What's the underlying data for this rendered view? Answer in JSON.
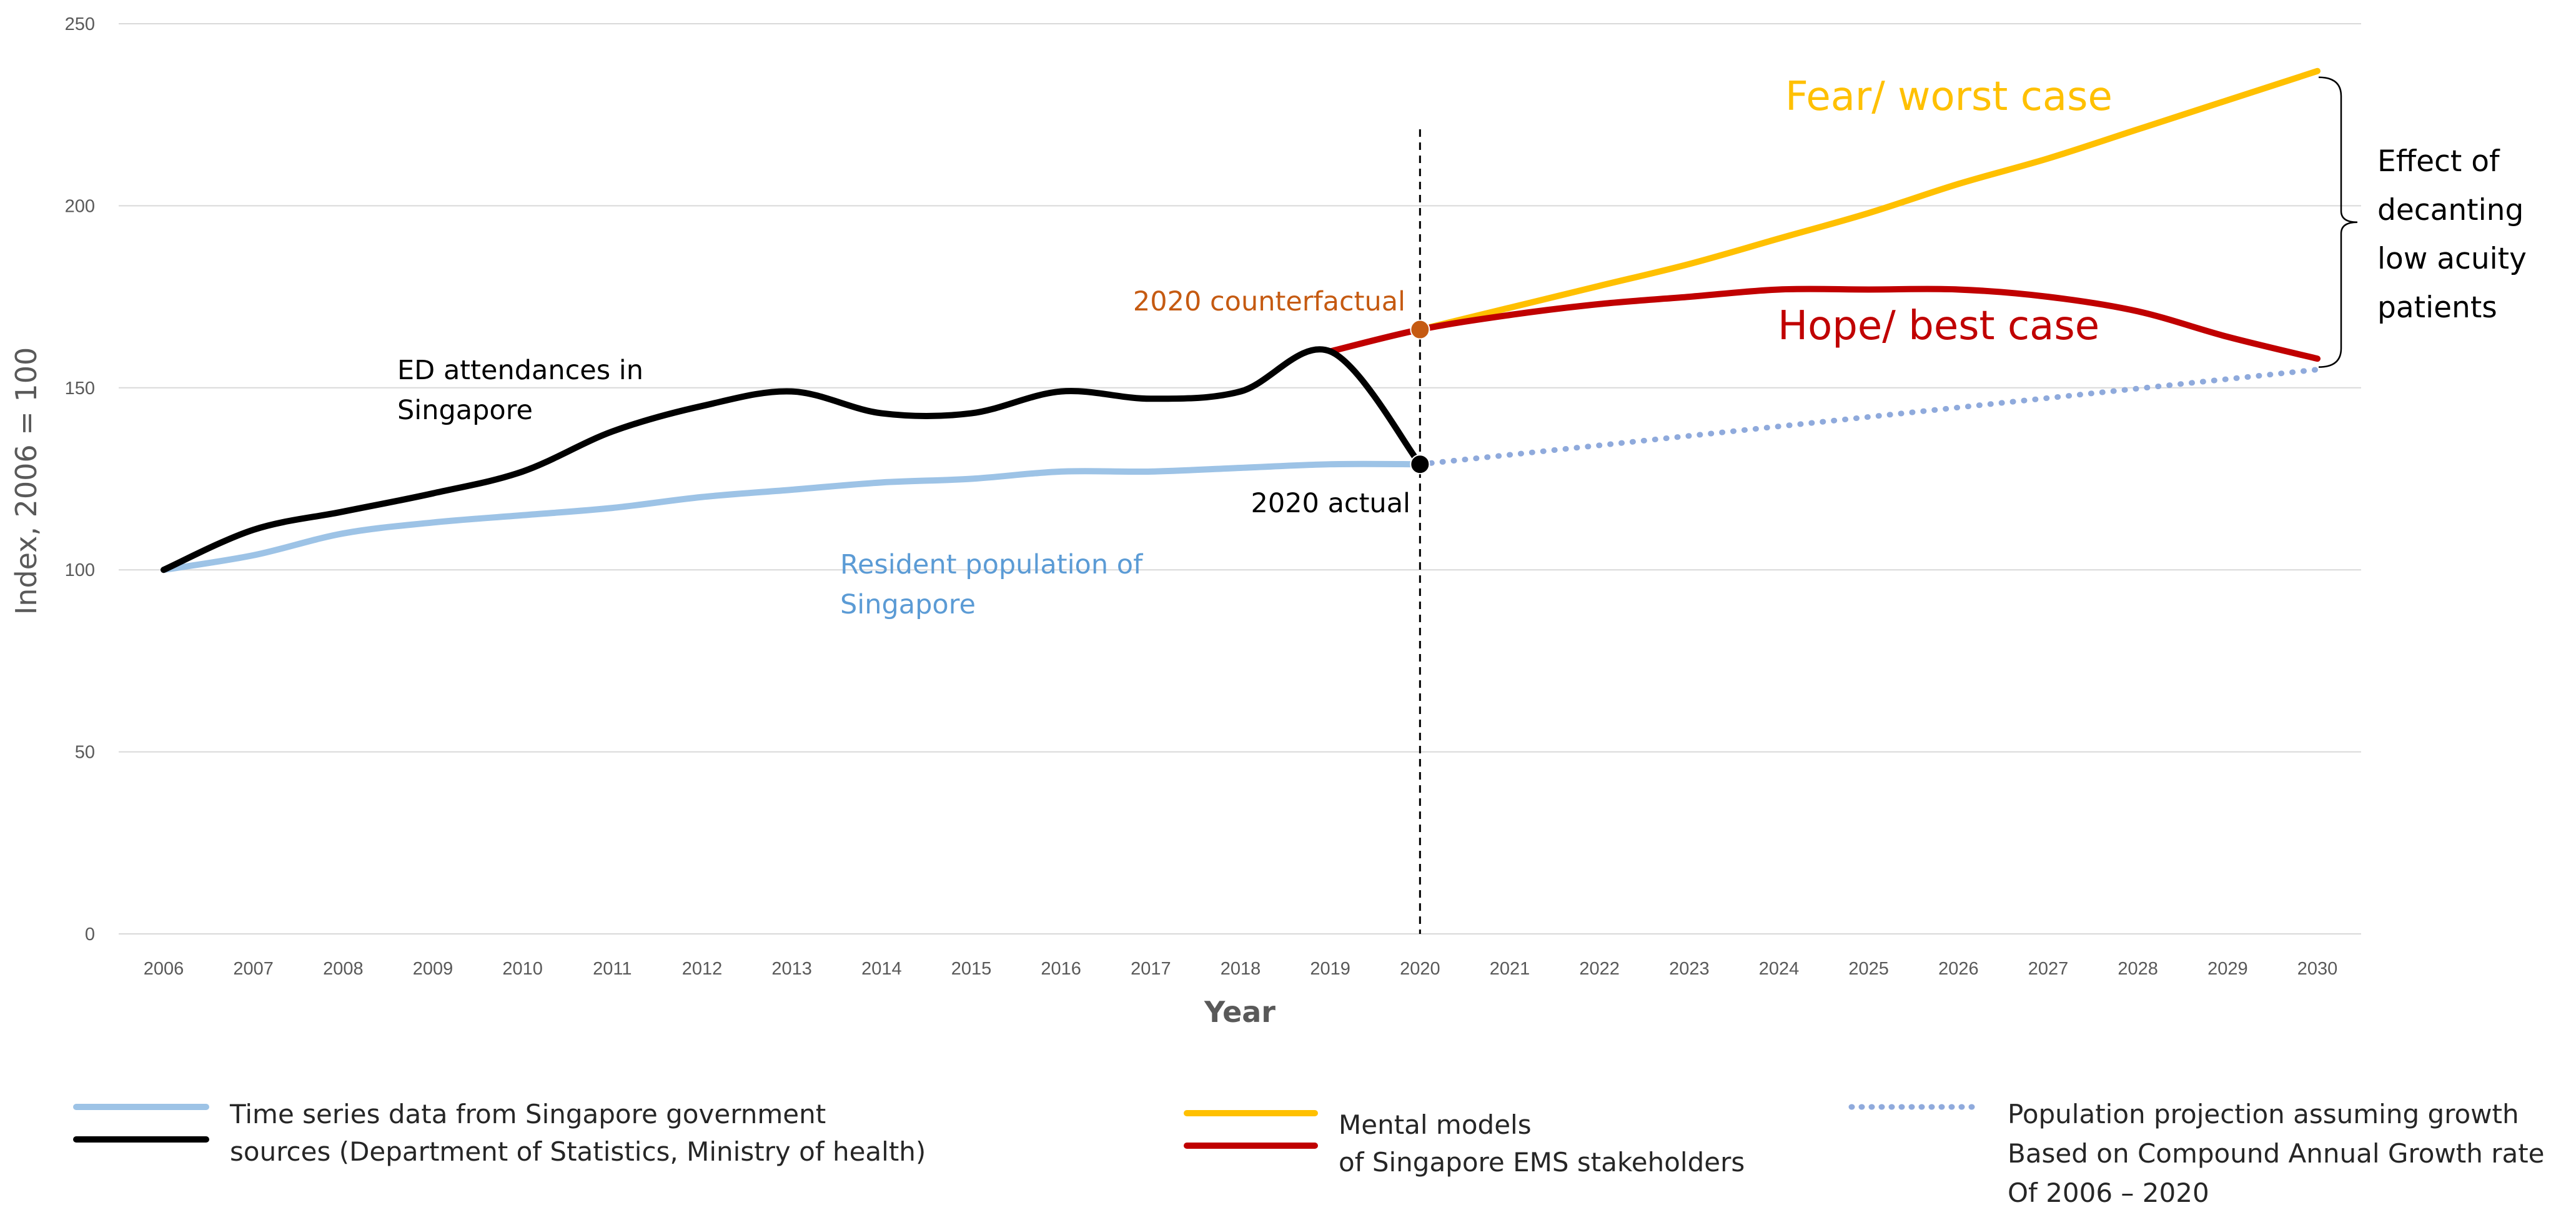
{
  "chart_data": {
    "type": "line",
    "xlabel": "Year",
    "ylabel": "Index, 2006 = 100",
    "ylim": [
      0,
      250
    ],
    "yticks": [
      0,
      50,
      100,
      150,
      200,
      250
    ],
    "grid": true,
    "x": [
      2006,
      2007,
      2008,
      2009,
      2010,
      2011,
      2012,
      2013,
      2014,
      2015,
      2016,
      2017,
      2018,
      2019,
      2020,
      2021,
      2022,
      2023,
      2024,
      2025,
      2026,
      2027,
      2028,
      2029,
      2030
    ],
    "series": [
      {
        "name": "ED attendances in Singapore",
        "color": "#000000",
        "style": "solid",
        "points": [
          [
            2006,
            100
          ],
          [
            2007,
            111
          ],
          [
            2008,
            116
          ],
          [
            2009,
            121
          ],
          [
            2010,
            127
          ],
          [
            2011,
            138
          ],
          [
            2012,
            145
          ],
          [
            2013,
            149
          ],
          [
            2014,
            143
          ],
          [
            2015,
            143
          ],
          [
            2016,
            149
          ],
          [
            2017,
            147
          ],
          [
            2018,
            149
          ],
          [
            2019,
            160
          ],
          [
            2020,
            129
          ]
        ]
      },
      {
        "name": "Resident population of Singapore",
        "color": "#9DC3E6",
        "style": "solid",
        "points": [
          [
            2006,
            100
          ],
          [
            2007,
            104
          ],
          [
            2008,
            110
          ],
          [
            2009,
            113
          ],
          [
            2010,
            115
          ],
          [
            2011,
            117
          ],
          [
            2012,
            120
          ],
          [
            2013,
            122
          ],
          [
            2014,
            124
          ],
          [
            2015,
            125
          ],
          [
            2016,
            127
          ],
          [
            2017,
            127
          ],
          [
            2018,
            128
          ],
          [
            2019,
            129
          ],
          [
            2020,
            129
          ]
        ]
      },
      {
        "name": "Population projection",
        "color": "#8FAADC",
        "style": "dotted",
        "points": [
          [
            2020,
            129
          ],
          [
            2030,
            155
          ]
        ]
      },
      {
        "name": "Fear/ worst case",
        "color": "#FFC000",
        "style": "solid",
        "points": [
          [
            2020,
            166
          ],
          [
            2021,
            172
          ],
          [
            2022,
            178
          ],
          [
            2023,
            184
          ],
          [
            2024,
            191
          ],
          [
            2025,
            198
          ],
          [
            2026,
            206
          ],
          [
            2027,
            213
          ],
          [
            2028,
            221
          ],
          [
            2029,
            229
          ],
          [
            2030,
            237
          ]
        ]
      },
      {
        "name": "Hope/ best case",
        "color": "#C00000",
        "style": "solid",
        "points": [
          [
            2019,
            160
          ],
          [
            2020,
            166
          ],
          [
            2021,
            170
          ],
          [
            2022,
            173
          ],
          [
            2023,
            175
          ],
          [
            2024,
            177
          ],
          [
            2025,
            177
          ],
          [
            2026,
            177
          ],
          [
            2027,
            175
          ],
          [
            2028,
            171
          ],
          [
            2029,
            164
          ],
          [
            2030,
            158
          ]
        ]
      }
    ],
    "markers": [
      {
        "x": 2020,
        "y": 166,
        "color": "#C55A11",
        "label": "2020 counterfactual"
      },
      {
        "x": 2020,
        "y": 129,
        "color": "#000000",
        "label": "2020 actual"
      }
    ],
    "vline": {
      "x": 2020,
      "style": "dashed",
      "color": "#000000",
      "top_value": 221
    },
    "annotations": {
      "ed_label": [
        "ED attendances in",
        "Singapore"
      ],
      "pop_label": [
        "Resident population of",
        "Singapore"
      ],
      "fear_label": "Fear/ worst case",
      "hope_label": "Hope/ best case",
      "effect_label": [
        "Effect of",
        "decanting",
        "low acuity",
        "patients"
      ]
    },
    "legend": {
      "placement": "bottom",
      "groups": [
        {
          "colors": [
            "#9DC3E6",
            "#000000"
          ],
          "style": "solid",
          "lines": [
            "Time series data from Singapore government",
            "sources (Department of Statistics, Ministry of health)"
          ]
        },
        {
          "colors": [
            "#FFC000",
            "#C00000"
          ],
          "style": "solid",
          "lines": [
            "Mental models",
            "of Singapore EMS stakeholders"
          ]
        },
        {
          "colors": [
            "#8FAADC"
          ],
          "style": "dotted",
          "lines": [
            "Population projection assuming growth",
            "Based on Compound Annual Growth rate",
            "Of 2006 – 2020"
          ]
        }
      ]
    }
  }
}
